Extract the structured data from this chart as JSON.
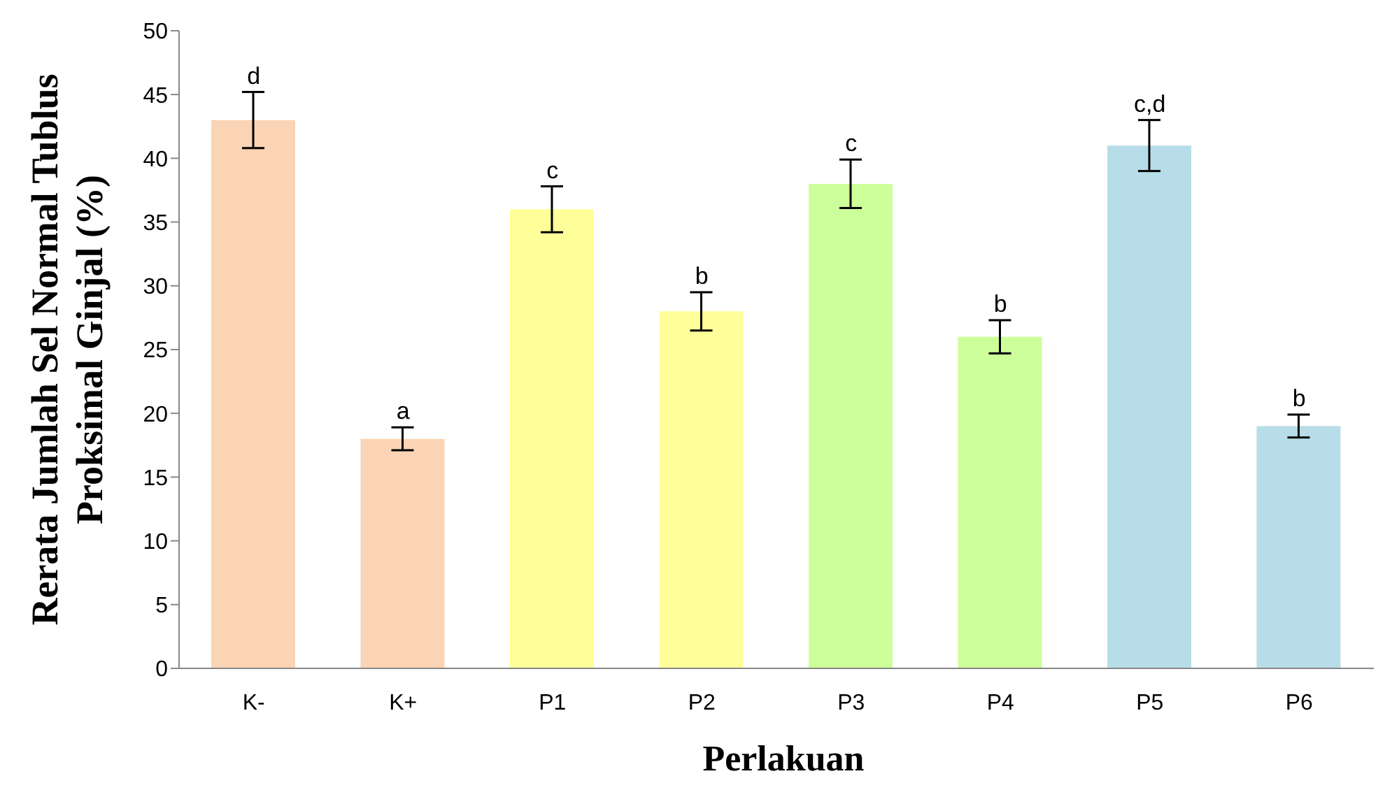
{
  "chart_data": {
    "type": "bar",
    "xlabel": "Perlakuan",
    "ylabel": "Rerata Jumlah Sel Normal Tublus\nProksimal Ginjal (%)",
    "categories": [
      "K-",
      "K+",
      "P1",
      "P2",
      "P3",
      "P4",
      "P5",
      "P6"
    ],
    "values": [
      43,
      18,
      36,
      28,
      38,
      26,
      41,
      19
    ],
    "errors": [
      2.2,
      0.9,
      1.8,
      1.5,
      1.9,
      1.3,
      2,
      0.9
    ],
    "colors": [
      "#fad4b4",
      "#fad4b4",
      "#ffff99",
      "#ffff99",
      "#ccff99",
      "#ccff99",
      "#b7dde8",
      "#b7dde8"
    ],
    "ylim": [
      0,
      50
    ],
    "yticks": [
      0,
      5,
      10,
      15,
      20,
      25,
      30,
      35,
      40,
      45,
      50
    ],
    "grid": false,
    "legend": false,
    "annotations": [
      {
        "text": "d",
        "x": "K-",
        "y": 45.2
      },
      {
        "text": "a",
        "x": "K+",
        "y": 18.9
      },
      {
        "text": "c",
        "x": "P1",
        "y": 37.8
      },
      {
        "text": "b",
        "x": "P2",
        "y": 29.5
      },
      {
        "text": "c",
        "x": "P3",
        "y": 39.9
      },
      {
        "text": "b",
        "x": "P4",
        "y": 27.3
      },
      {
        "text": "c,d",
        "x": "P5",
        "y": 43
      },
      {
        "text": "b",
        "x": "P6",
        "y": 19.9
      }
    ]
  }
}
